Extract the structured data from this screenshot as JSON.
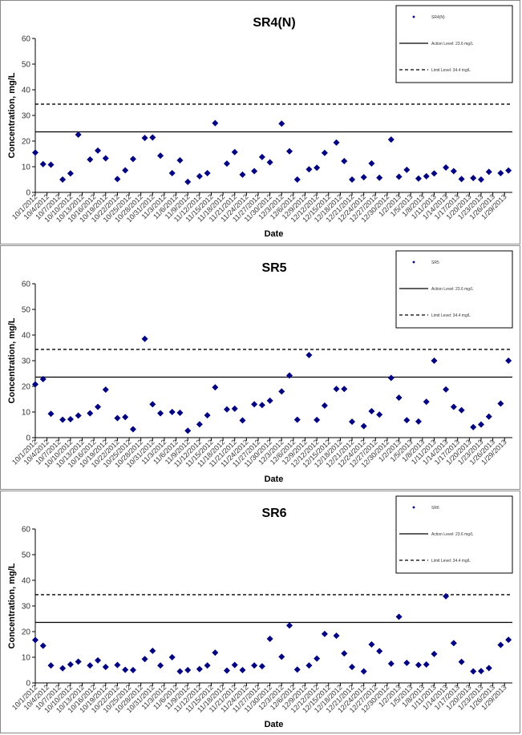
{
  "chart_data": [
    {
      "type": "scatter",
      "title": "SR4(N)",
      "xlabel": "Date",
      "ylabel": "Concentration, mg/L",
      "ylim": [
        0,
        60
      ],
      "yticks": [
        "0",
        "10",
        "20",
        "30",
        "40",
        "50",
        "60"
      ],
      "grid": false,
      "legend_position": "top-right",
      "xticks": [
        "10/1/2012",
        "10/4/2012",
        "10/7/2012",
        "10/10/2012",
        "10/13/2012",
        "10/16/2012",
        "10/19/2012",
        "10/22/2012",
        "10/25/2012",
        "10/28/2012",
        "10/31/2012",
        "11/3/2012",
        "11/6/2012",
        "11/9/2012",
        "11/12/2012",
        "11/15/2012",
        "11/18/2012",
        "11/21/2012",
        "11/24/2012",
        "11/27/2012",
        "11/30/2012",
        "12/3/2012",
        "12/6/2012",
        "12/9/2012",
        "12/12/2012",
        "12/15/2012",
        "12/18/2012",
        "12/21/2012",
        "12/24/2012",
        "12/27/2012",
        "12/30/2012",
        "1/2/2013",
        "1/5/2013",
        "1/8/2013",
        "1/11/2013",
        "1/14/2013",
        "1/17/2013",
        "1/20/2013",
        "1/23/2013",
        "1/26/2013",
        "1/29/2013"
      ],
      "xlim": [
        "10/1/2012",
        "1/31/2013"
      ],
      "series": [
        {
          "name": "SR4(N)",
          "kind": "points",
          "color": "#000080",
          "x": [
            "10/1/2012",
            "10/3/2012",
            "10/5/2012",
            "10/8/2012",
            "10/10/2012",
            "10/12/2012",
            "10/15/2012",
            "10/17/2012",
            "10/19/2012",
            "10/22/2012",
            "10/24/2012",
            "10/26/2012",
            "10/29/2012",
            "10/31/2012",
            "11/2/2012",
            "11/5/2012",
            "11/7/2012",
            "11/9/2012",
            "11/12/2012",
            "11/14/2012",
            "11/16/2012",
            "11/19/2012",
            "11/21/2012",
            "11/23/2012",
            "11/26/2012",
            "11/28/2012",
            "11/30/2012",
            "12/3/2012",
            "12/5/2012",
            "12/7/2012",
            "12/10/2012",
            "12/12/2012",
            "12/14/2012",
            "12/17/2012",
            "12/19/2012",
            "12/21/2012",
            "12/24/2012",
            "12/26/2012",
            "12/28/2012",
            "12/31/2012",
            "1/2/2013",
            "1/4/2013",
            "1/7/2013",
            "1/9/2013",
            "1/11/2013",
            "1/14/2013",
            "1/16/2013",
            "1/18/2013",
            "1/21/2013",
            "1/23/2013",
            "1/25/2013",
            "1/28/2013",
            "1/30/2013"
          ],
          "y": [
            15.5,
            11,
            10.8,
            5,
            7.4,
            22.5,
            12.8,
            16.3,
            13.3,
            5.2,
            8.6,
            13,
            21.2,
            21.4,
            14.3,
            7.5,
            12.5,
            4.1,
            6.3,
            7.5,
            27,
            11.2,
            15.7,
            6.9,
            8.3,
            13.8,
            11.7,
            26.8,
            16,
            5,
            9,
            9.6,
            15.4,
            19.4,
            12.2,
            5,
            5.9,
            11.3,
            5.7,
            20.6,
            6.1,
            8.8,
            5.4,
            6.3,
            7.4,
            9.7,
            8.3,
            5.2,
            5.6,
            5,
            8,
            7.5,
            8.5
          ]
        },
        {
          "name": "Action Level: 23.6 mg/L",
          "kind": "line",
          "dash": false,
          "value": 23.6
        },
        {
          "name": "Limit Level: 34.4 mg/L",
          "kind": "line",
          "dash": true,
          "value": 34.4
        }
      ]
    },
    {
      "type": "scatter",
      "title": "SR5",
      "xlabel": "Date",
      "ylabel": "Concentration, mg/L",
      "ylim": [
        0,
        60
      ],
      "yticks": [
        "0",
        "10",
        "20",
        "30",
        "40",
        "50",
        "60"
      ],
      "grid": false,
      "legend_position": "top-right",
      "xticks": [
        "10/1/2012",
        "10/4/2012",
        "10/7/2012",
        "10/10/2012",
        "10/13/2012",
        "10/16/2012",
        "10/19/2012",
        "10/22/2012",
        "10/25/2012",
        "10/28/2012",
        "10/31/2012",
        "11/3/2012",
        "11/6/2012",
        "11/9/2012",
        "11/12/2012",
        "11/15/2012",
        "11/18/2012",
        "11/21/2012",
        "11/24/2012",
        "11/27/2012",
        "11/30/2012",
        "12/3/2012",
        "12/6/2012",
        "12/9/2012",
        "12/12/2012",
        "12/15/2012",
        "12/18/2012",
        "12/21/2012",
        "12/24/2012",
        "12/27/2012",
        "12/30/2012",
        "1/2/2013",
        "1/5/2013",
        "1/8/2013",
        "1/11/2013",
        "1/14/2013",
        "1/17/2013",
        "1/20/2013",
        "1/23/2013",
        "1/26/2013",
        "1/29/2013"
      ],
      "xlim": [
        "10/1/2012",
        "1/31/2013"
      ],
      "series": [
        {
          "name": "SR5",
          "kind": "points",
          "color": "#000080",
          "x": [
            "10/1/2012",
            "10/3/2012",
            "10/5/2012",
            "10/8/2012",
            "10/10/2012",
            "10/12/2012",
            "10/15/2012",
            "10/17/2012",
            "10/19/2012",
            "10/22/2012",
            "10/24/2012",
            "10/26/2012",
            "10/29/2012",
            "10/31/2012",
            "11/2/2012",
            "11/5/2012",
            "11/7/2012",
            "11/9/2012",
            "11/12/2012",
            "11/14/2012",
            "11/16/2012",
            "11/19/2012",
            "11/21/2012",
            "11/23/2012",
            "11/26/2012",
            "11/28/2012",
            "11/30/2012",
            "12/3/2012",
            "12/5/2012",
            "12/7/2012",
            "12/10/2012",
            "12/12/2012",
            "12/14/2012",
            "12/17/2012",
            "12/19/2012",
            "12/21/2012",
            "12/24/2012",
            "12/26/2012",
            "12/28/2012",
            "12/31/2012",
            "1/2/2013",
            "1/4/2013",
            "1/7/2013",
            "1/9/2013",
            "1/11/2013",
            "1/14/2013",
            "1/16/2013",
            "1/18/2013",
            "1/21/2013",
            "1/23/2013",
            "1/25/2013",
            "1/28/2013",
            "1/30/2013"
          ],
          "y": [
            20.8,
            22.8,
            9.3,
            7,
            7.2,
            8.6,
            9.5,
            12,
            18.7,
            7.6,
            8,
            3.3,
            38.5,
            13,
            9.5,
            10,
            9.7,
            2.7,
            5.2,
            8.7,
            19.6,
            11,
            11.3,
            6.7,
            13,
            12.7,
            14.4,
            18,
            24.2,
            7,
            32.2,
            6.9,
            12.5,
            19,
            19,
            6.2,
            4.5,
            10.3,
            9,
            23.3,
            15.6,
            6.8,
            6.3,
            14,
            30,
            18.8,
            12,
            10.7,
            4.1,
            5.1,
            8.2,
            13.3,
            30
          ]
        },
        {
          "name": "Action Level: 23.6 mg/L",
          "kind": "line",
          "dash": false,
          "value": 23.6
        },
        {
          "name": "Limit Level: 34.4 mg/L",
          "kind": "line",
          "dash": true,
          "value": 34.4
        }
      ]
    },
    {
      "type": "scatter",
      "title": "SR6",
      "xlabel": "Date",
      "ylabel": "Concentration, mg/L",
      "ylim": [
        0,
        60
      ],
      "yticks": [
        "0",
        "10",
        "20",
        "30",
        "40",
        "50",
        "60"
      ],
      "grid": false,
      "legend_position": "top-right",
      "xticks": [
        "10/1/2012",
        "10/4/2012",
        "10/7/2012",
        "10/10/2012",
        "10/13/2012",
        "10/16/2012",
        "10/19/2012",
        "10/22/2012",
        "10/25/2012",
        "10/28/2012",
        "10/31/2012",
        "11/3/2012",
        "11/6/2012",
        "11/9/2012",
        "11/12/2012",
        "11/15/2012",
        "11/18/2012",
        "11/21/2012",
        "11/24/2012",
        "11/27/2012",
        "11/30/2012",
        "12/3/2012",
        "12/6/2012",
        "12/9/2012",
        "12/12/2012",
        "12/15/2012",
        "12/18/2012",
        "12/21/2012",
        "12/24/2012",
        "12/27/2012",
        "12/30/2012",
        "1/2/2013",
        "1/5/2013",
        "1/8/2013",
        "1/11/2013",
        "1/14/2013",
        "1/17/2013",
        "1/20/2013",
        "1/23/2013",
        "1/26/2013",
        "1/29/2013"
      ],
      "xlim": [
        "10/1/2012",
        "1/31/2013"
      ],
      "series": [
        {
          "name": "SR6",
          "kind": "points",
          "color": "#000080",
          "x": [
            "10/1/2012",
            "10/3/2012",
            "10/5/2012",
            "10/8/2012",
            "10/10/2012",
            "10/12/2012",
            "10/15/2012",
            "10/17/2012",
            "10/19/2012",
            "10/22/2012",
            "10/24/2012",
            "10/26/2012",
            "10/29/2012",
            "10/31/2012",
            "11/2/2012",
            "11/5/2012",
            "11/7/2012",
            "11/9/2012",
            "11/12/2012",
            "11/14/2012",
            "11/16/2012",
            "11/19/2012",
            "11/21/2012",
            "11/23/2012",
            "11/26/2012",
            "11/28/2012",
            "11/30/2012",
            "12/3/2012",
            "12/5/2012",
            "12/7/2012",
            "12/10/2012",
            "12/12/2012",
            "12/14/2012",
            "12/17/2012",
            "12/19/2012",
            "12/21/2012",
            "12/24/2012",
            "12/26/2012",
            "12/28/2012",
            "12/31/2012",
            "1/2/2013",
            "1/4/2013",
            "1/7/2013",
            "1/9/2013",
            "1/11/2013",
            "1/14/2013",
            "1/16/2013",
            "1/18/2013",
            "1/21/2013",
            "1/23/2013",
            "1/25/2013",
            "1/28/2013",
            "1/30/2013"
          ],
          "y": [
            16.7,
            14.5,
            6.8,
            5.7,
            7.2,
            8.3,
            6.8,
            8.8,
            6.2,
            7,
            5.1,
            5,
            9.3,
            12.5,
            6.8,
            10,
            4.5,
            5,
            5.4,
            6.8,
            11.8,
            4.8,
            7,
            5,
            6.8,
            6.5,
            17.2,
            10.2,
            22.4,
            5.2,
            6.8,
            9.5,
            19.1,
            18.4,
            11.5,
            6.2,
            4.5,
            15,
            12.4,
            7.5,
            25.8,
            7.8,
            7,
            7.2,
            11.3,
            33.8,
            15.5,
            8.2,
            4.5,
            4.6,
            5.8,
            14.8,
            16.8
          ]
        },
        {
          "name": "Action Level: 23.6 mg/L",
          "kind": "line",
          "dash": false,
          "value": 23.6
        },
        {
          "name": "Limit Level: 34.4 mg/L",
          "kind": "line",
          "dash": true,
          "value": 34.4
        }
      ]
    }
  ]
}
